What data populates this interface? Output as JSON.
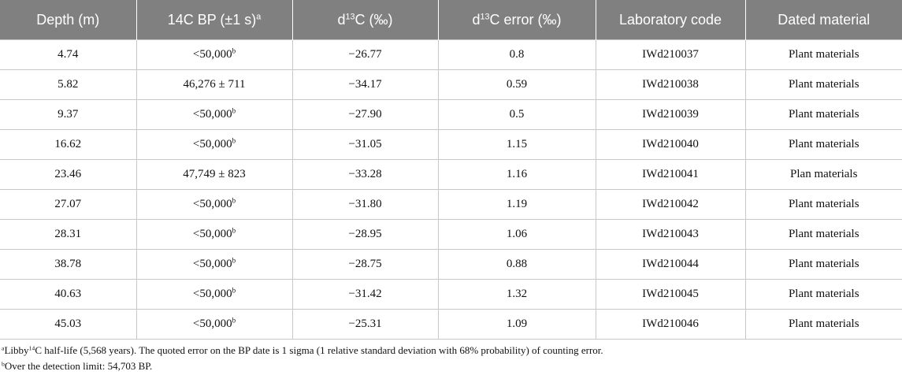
{
  "table": {
    "header": [
      "Depth (m)",
      [
        {
          "text": "14C BP (±1 s)"
        },
        {
          "text": "a",
          "sup": true
        }
      ],
      [
        {
          "text": "d"
        },
        {
          "text": "13",
          "sup": true
        },
        {
          "text": "C (‰)"
        }
      ],
      [
        {
          "text": "d"
        },
        {
          "text": "13",
          "sup": true
        },
        {
          "text": "C error (‰)"
        }
      ],
      "Laboratory code",
      "Dated material"
    ],
    "rows": [
      [
        "4.74",
        [
          {
            "text": "<50,000"
          },
          {
            "text": "b",
            "sup": true
          }
        ],
        "−26.77",
        "0.8",
        "IWd210037",
        "Plant materials"
      ],
      [
        "5.82",
        "46,276 ± 711",
        "−34.17",
        "0.59",
        "IWd210038",
        "Plant materials"
      ],
      [
        "9.37",
        [
          {
            "text": "<50,000"
          },
          {
            "text": "b",
            "sup": true
          }
        ],
        "−27.90",
        "0.5",
        "IWd210039",
        "Plant materials"
      ],
      [
        "16.62",
        [
          {
            "text": "<50,000"
          },
          {
            "text": "b",
            "sup": true
          }
        ],
        "−31.05",
        "1.15",
        "IWd210040",
        "Plant materials"
      ],
      [
        "23.46",
        "47,749 ± 823",
        "−33.28",
        "1.16",
        "IWd210041",
        "Plan materials"
      ],
      [
        "27.07",
        [
          {
            "text": "<50,000"
          },
          {
            "text": "b",
            "sup": true
          }
        ],
        "−31.80",
        "1.19",
        "IWd210042",
        "Plant materials"
      ],
      [
        "28.31",
        [
          {
            "text": "<50,000"
          },
          {
            "text": "b",
            "sup": true
          }
        ],
        "−28.95",
        "1.06",
        "IWd210043",
        "Plant materials"
      ],
      [
        "38.78",
        [
          {
            "text": "<50,000"
          },
          {
            "text": "b",
            "sup": true
          }
        ],
        "−28.75",
        "0.88",
        "IWd210044",
        "Plant materials"
      ],
      [
        "40.63",
        [
          {
            "text": "<50,000"
          },
          {
            "text": "b",
            "sup": true
          }
        ],
        "−31.42",
        "1.32",
        "IWd210045",
        "Plant materials"
      ],
      [
        "45.03",
        [
          {
            "text": "<50,000"
          },
          {
            "text": "b",
            "sup": true
          }
        ],
        "−25.31",
        "1.09",
        "IWd210046",
        "Plant materials"
      ]
    ],
    "footnotes": [
      [
        {
          "text": "a",
          "sup": true
        },
        {
          "text": "Libby"
        },
        {
          "text": "14",
          "sup": true
        },
        {
          "text": "C half-life (5,568 years). The quoted error on the BP date is 1 sigma (1 relative standard deviation with 68% probability) of counting error."
        }
      ],
      [
        {
          "text": "b",
          "sup": true
        },
        {
          "text": "Over the detection limit: 54,703 BP."
        }
      ]
    ]
  }
}
